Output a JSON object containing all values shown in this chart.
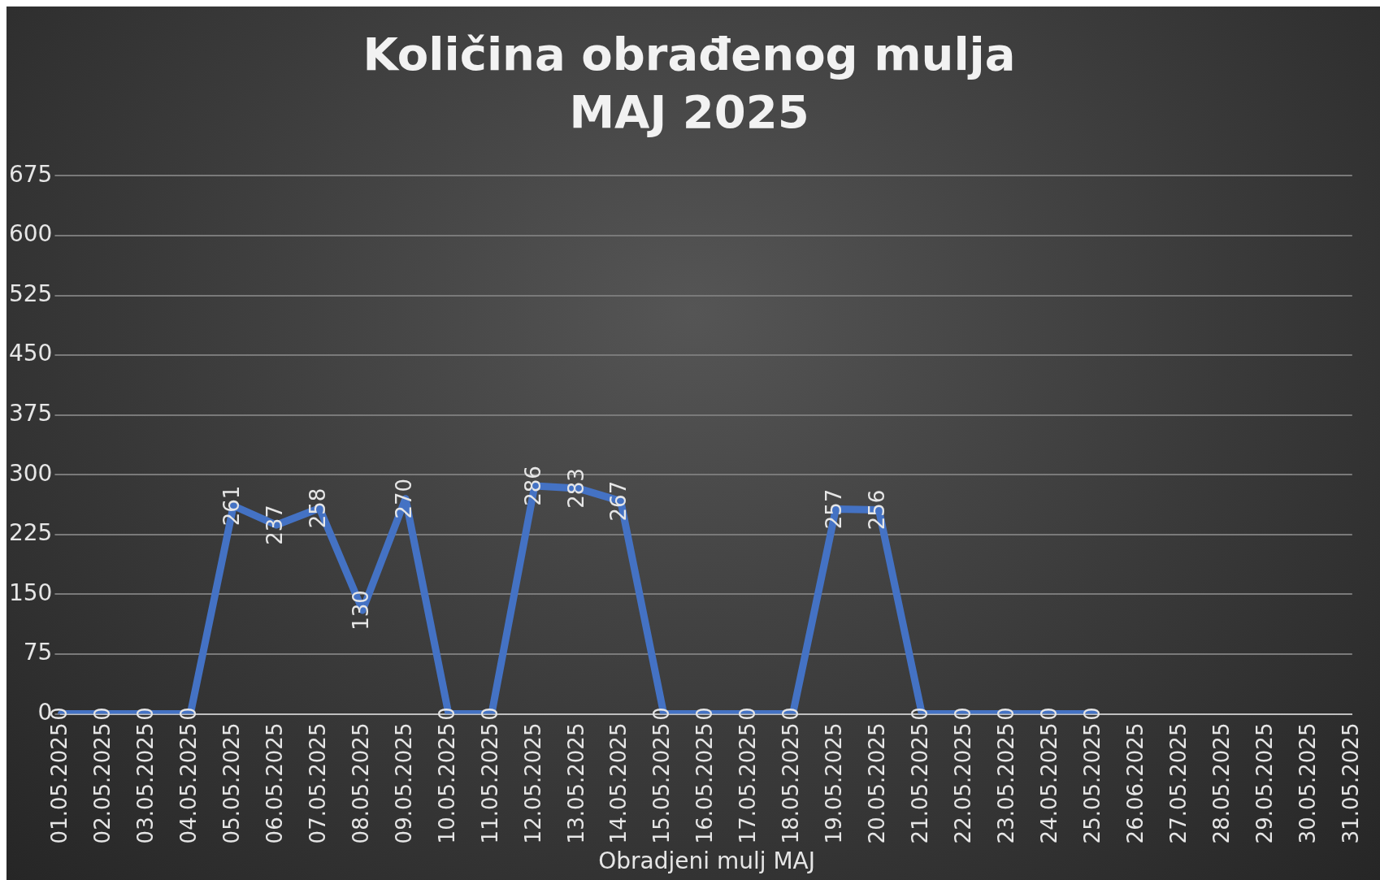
{
  "chart_data": {
    "type": "line",
    "title": "Količina obrađenog mulja",
    "subtitle": "MAJ 2025",
    "xlabel": "Obradjeni mulj MAJ",
    "categories": [
      "01.05.2025",
      "02.05.2025",
      "03.05.2025",
      "04.05.2025",
      "05.05.2025",
      "06.05.2025",
      "07.05.2025",
      "08.05.2025",
      "09.05.2025",
      "10.05.2025",
      "11.05.2025",
      "12.05.2025",
      "13.05.2025",
      "14.05.2025",
      "15.05.2025",
      "16.05.2025",
      "17.05.2025",
      "18.05.2025",
      "19.05.2025",
      "20.05.2025",
      "21.05.2025",
      "22.05.2025",
      "23.05.2025",
      "24.05.2025",
      "25.05.2025",
      "26.06.2025",
      "27.05.2025",
      "28.05.2025",
      "29.05.2025",
      "30.05.2025",
      "31.05.2025"
    ],
    "series": [
      {
        "color": "#4472c4",
        "values": [
          0,
          0,
          0,
          0,
          261,
          237,
          258,
          130,
          270,
          0,
          0,
          286,
          283,
          267,
          0,
          0,
          0,
          0,
          257,
          256,
          0,
          0,
          0,
          0,
          0,
          null,
          null,
          null,
          null,
          null,
          null
        ]
      }
    ],
    "ylim": [
      0,
      675
    ],
    "yticks": [
      0,
      75,
      150,
      225,
      300,
      375,
      450,
      525,
      600,
      675
    ],
    "grid": "y",
    "legend": false,
    "marker": "none",
    "line_style": "solid",
    "data_labels": true
  }
}
